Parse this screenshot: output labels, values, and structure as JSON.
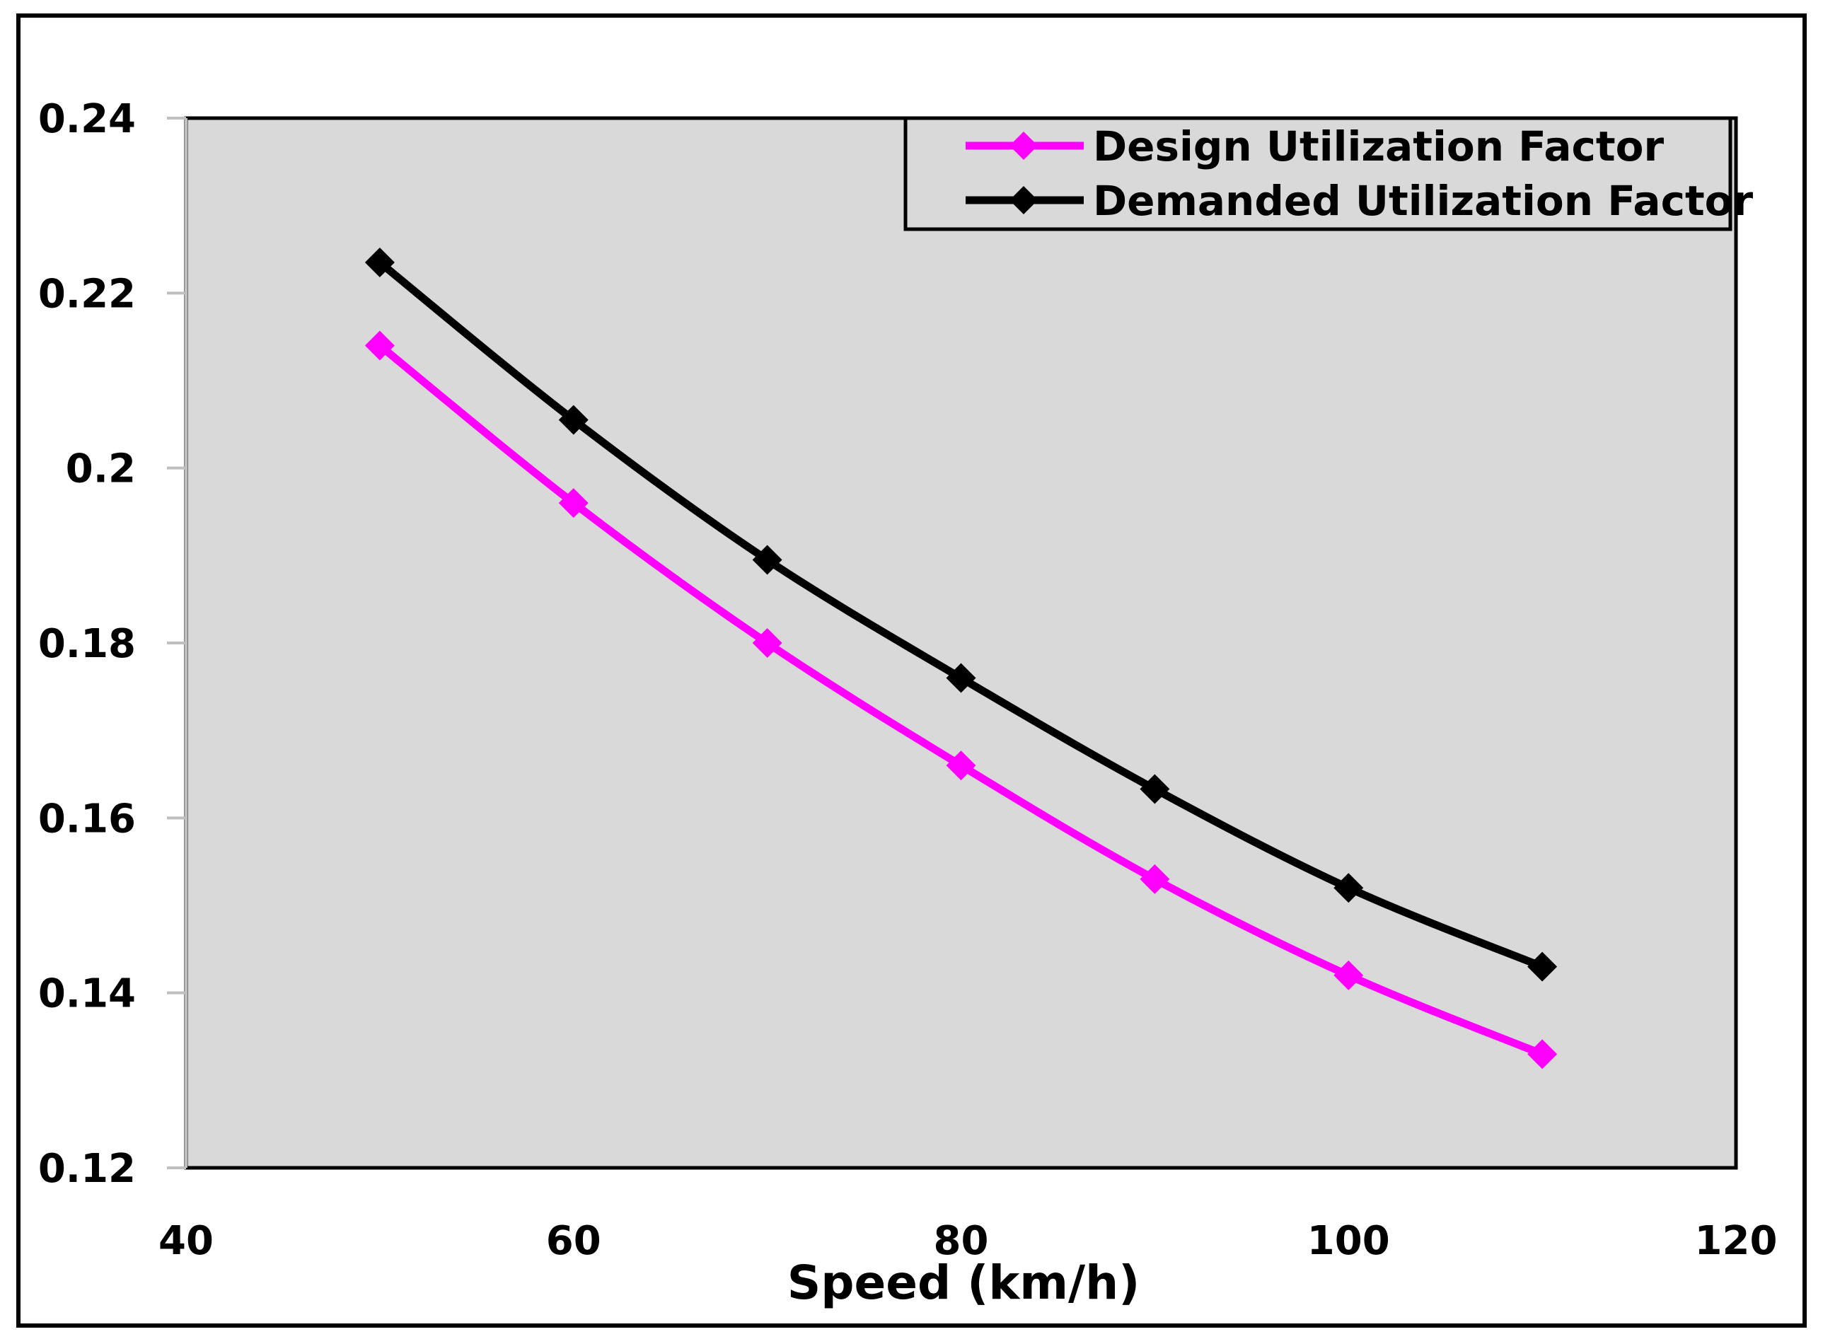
{
  "chart_data": {
    "type": "line",
    "title": "",
    "xlabel": "Speed (km/h)",
    "ylabel": "",
    "xlim": [
      40,
      120
    ],
    "ylim": [
      0.12,
      0.24
    ],
    "xticks": [
      40,
      60,
      80,
      100,
      120
    ],
    "yticks": [
      0.12,
      0.14,
      0.16,
      0.18,
      0.2,
      0.22,
      0.24
    ],
    "ytick_labels": [
      "0.12",
      "0.14",
      "0.16",
      "0.18",
      "0.2",
      "0.22",
      "0.24"
    ],
    "xtick_labels": [
      "40",
      "60",
      "80",
      "100",
      "120"
    ],
    "grid": false,
    "legend_position": "top-right",
    "plot_background": "#d9d9d9",
    "series": [
      {
        "name": "Design Utilization Factor",
        "color": "#ff00ff",
        "marker": "diamond",
        "x": [
          50,
          60,
          70,
          80,
          90,
          100,
          110
        ],
        "values": [
          0.214,
          0.196,
          0.18,
          0.166,
          0.153,
          0.142,
          0.133
        ]
      },
      {
        "name": "Demanded Utilization Factor",
        "color": "#000000",
        "marker": "diamond",
        "x": [
          50,
          60,
          70,
          80,
          90,
          100,
          110
        ],
        "values": [
          0.2235,
          0.2055,
          0.1895,
          0.176,
          0.1633,
          0.152,
          0.143
        ]
      }
    ]
  }
}
